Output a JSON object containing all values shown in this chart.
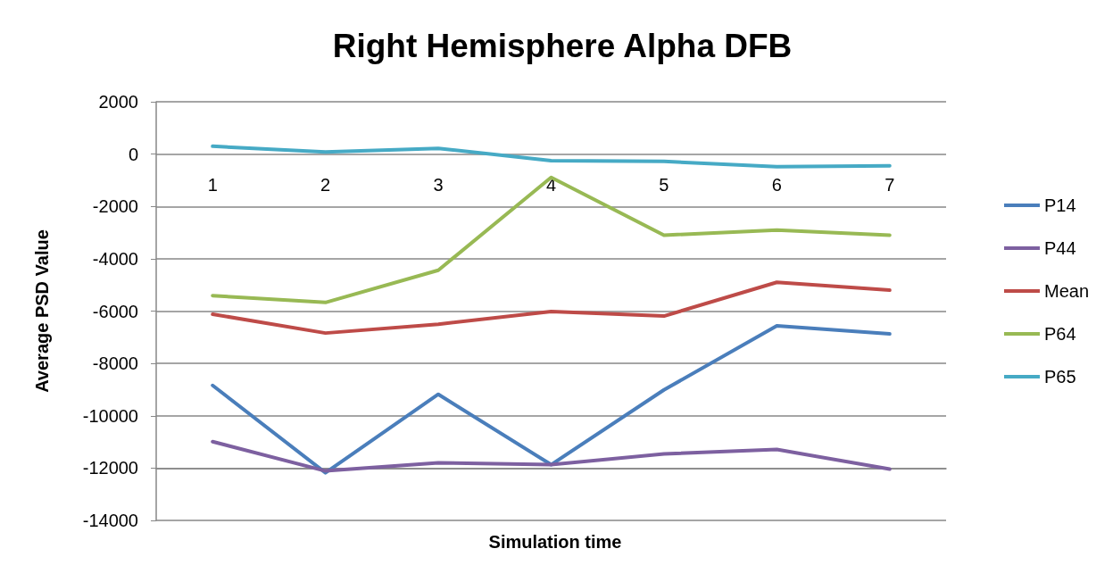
{
  "chart_data": {
    "type": "line",
    "title": "Right Hemisphere Alpha DFB",
    "xlabel": "Simulation time",
    "ylabel": "Average PSD Value",
    "categories": [
      "1",
      "2",
      "3",
      "4",
      "5",
      "6",
      "7"
    ],
    "series": [
      {
        "name": "P14",
        "color": "#4a7ebb",
        "values": [
          -8840,
          -12180,
          -9180,
          -11870,
          -9010,
          -6560,
          -6870
        ]
      },
      {
        "name": "P44",
        "color": "#7d60a0",
        "values": [
          -10990,
          -12110,
          -11800,
          -11870,
          -11460,
          -11290,
          -12040
        ]
      },
      {
        "name": "Mean",
        "color": "#be4b48",
        "values": [
          -6120,
          -6840,
          -6500,
          -6020,
          -6190,
          -4900,
          -5200
        ]
      },
      {
        "name": "P64",
        "color": "#98b954",
        "values": [
          -5410,
          -5670,
          -4440,
          -890,
          -3100,
          -2900,
          -3100
        ]
      },
      {
        "name": "P65",
        "color": "#46aac5",
        "values": [
          300,
          80,
          220,
          -250,
          -280,
          -480,
          -450
        ]
      }
    ],
    "ylim": [
      -14000,
      2000
    ],
    "yticks": [
      -14000,
      -12000,
      -10000,
      -8000,
      -6000,
      -4000,
      -2000,
      0,
      2000
    ],
    "grid": "y",
    "legend": "right",
    "marker": "none",
    "line_style": "solid"
  }
}
